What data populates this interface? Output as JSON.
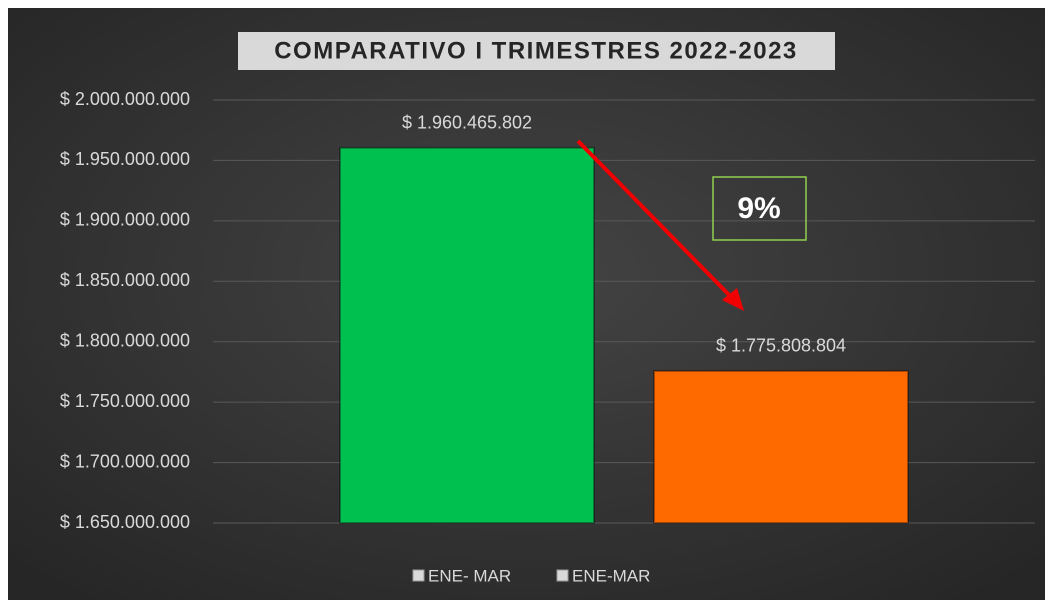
{
  "chart_data": {
    "type": "bar",
    "title": "COMPARATIVO I TRIMESTRES 2022-2023",
    "annotation": "9%",
    "series": [
      {
        "name": "ENE- MAR",
        "color": "#00c050",
        "values": [
          1960465802
        ],
        "value_labels": [
          "$ 1.960.465.802"
        ]
      },
      {
        "name": "ENE-MAR",
        "color": "#ff6a00",
        "values": [
          1775808804
        ],
        "value_labels": [
          "$ 1.775.808.804"
        ]
      }
    ],
    "ylim": [
      1650000000,
      2000000000
    ],
    "yticks": [
      {
        "value": 1650000000,
        "label": "$ 1.650.000.000"
      },
      {
        "value": 1700000000,
        "label": "$ 1.700.000.000"
      },
      {
        "value": 1750000000,
        "label": "$ 1.750.000.000"
      },
      {
        "value": 1800000000,
        "label": "$ 1.800.000.000"
      },
      {
        "value": 1850000000,
        "label": "$ 1.850.000.000"
      },
      {
        "value": 1900000000,
        "label": "$ 1.900.000.000"
      },
      {
        "value": 1950000000,
        "label": "$ 1.950.000.000"
      },
      {
        "value": 2000000000,
        "label": "$ 2.000.000.000"
      }
    ],
    "grid": true,
    "legend": "bottom"
  }
}
